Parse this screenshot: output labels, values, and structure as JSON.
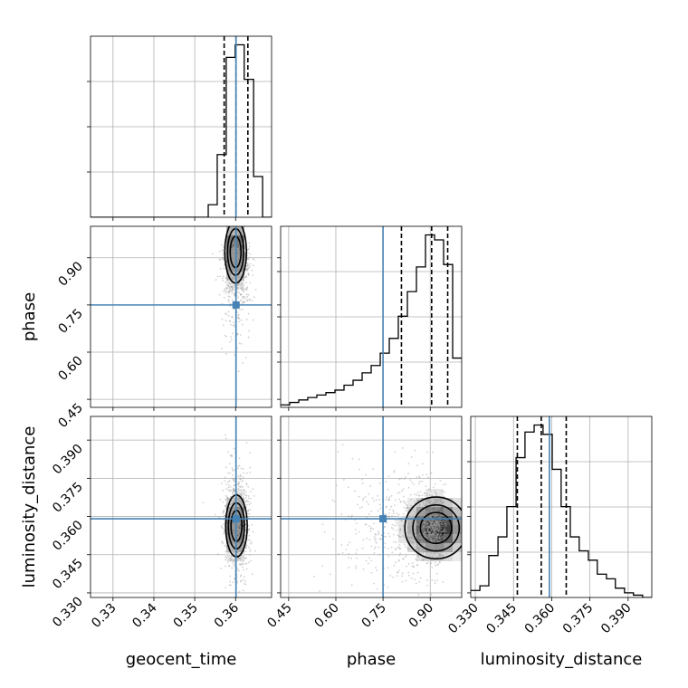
{
  "chart_data": {
    "type": "corner",
    "parameters": [
      "geocent_time",
      "phase",
      "luminosity_distance"
    ],
    "truths": {
      "geocent_time": 0.3601,
      "phase": 0.75,
      "luminosity_distance": 0.3591
    },
    "colors": {
      "truth": "#4682b4",
      "hist": "#000000",
      "samples": "#9a9a9a",
      "grid": "#b0b0b0"
    },
    "grid": true,
    "ranges": {
      "geocent_time": [
        0.3245,
        0.3688
      ],
      "phase": [
        0.4245,
        1.0
      ],
      "luminosity_distance": [
        0.3282,
        0.3993
      ]
    },
    "ticks": {
      "geocent_time": [
        "0.33",
        "0.34",
        "0.35",
        "0.36"
      ],
      "phase": [
        "0.45",
        "0.60",
        "0.75",
        "0.90"
      ],
      "luminosity_distance": [
        "0.330",
        "0.345",
        "0.360",
        "0.375",
        "0.390"
      ]
    },
    "quantiles": {
      "geocent_time": [
        0.3572,
        0.3601,
        0.363
      ],
      "phase": [
        0.8085,
        0.9045,
        0.9555
      ],
      "luminosity_distance": [
        0.3465,
        0.3559,
        0.3657
      ]
    },
    "histograms": {
      "geocent_time": {
        "edges": [
          0.3245,
          0.3267,
          0.3289,
          0.3311,
          0.3334,
          0.3356,
          0.3378,
          0.34,
          0.3422,
          0.3444,
          0.3466,
          0.3489,
          0.3511,
          0.3533,
          0.3555,
          0.3577,
          0.3599,
          0.3621,
          0.3644,
          0.3666,
          0.3688
        ],
        "counts": [
          0,
          0,
          0,
          0,
          0,
          0,
          0,
          0,
          0,
          0,
          0,
          0,
          0,
          4,
          20,
          51,
          55,
          44,
          13,
          0
        ]
      },
      "phase": {
        "edges": [
          0.4245,
          0.4533,
          0.4821,
          0.5108,
          0.5396,
          0.5684,
          0.5972,
          0.626,
          0.6547,
          0.6835,
          0.7123,
          0.7411,
          0.7699,
          0.7986,
          0.8274,
          0.8562,
          0.885,
          0.9138,
          0.9425,
          0.9713,
          1.0
        ],
        "counts": [
          1,
          2,
          3,
          4,
          5,
          6,
          7,
          9,
          11,
          14,
          17,
          22,
          28,
          37,
          47,
          57,
          70,
          68,
          58,
          20
        ]
      },
      "luminosity_distance": {
        "edges": [
          0.3282,
          0.3318,
          0.3353,
          0.3389,
          0.3424,
          0.346,
          0.3495,
          0.3531,
          0.3566,
          0.3602,
          0.3637,
          0.3673,
          0.3708,
          0.3744,
          0.3779,
          0.3815,
          0.385,
          0.3886,
          0.3921,
          0.3957,
          0.3993
        ],
        "counts": [
          3,
          5,
          18,
          26,
          39,
          60,
          71,
          74,
          70,
          55,
          39,
          26,
          20,
          16,
          10,
          8,
          4,
          2,
          1,
          0
        ]
      }
    },
    "densities": {
      "phase_vs_geocent_time": {
        "center": [
          0.36,
          0.9185
        ],
        "sigma": [
          0.0012,
          0.045
        ],
        "tail": [
          0.0017,
          0.12
        ],
        "levels": [
          0.15,
          0.35,
          0.62
        ]
      },
      "luminosity_distance_vs_geocent_time": {
        "center": [
          0.3602,
          0.3563
        ],
        "sigma": [
          0.0012,
          0.0055
        ],
        "tail": [
          0.0017,
          0.012
        ],
        "levels": [
          0.15,
          0.35,
          0.62
        ]
      },
      "luminosity_distance_vs_phase": {
        "center": [
          0.9185,
          0.3555
        ],
        "sigma": [
          0.045,
          0.0055
        ],
        "tail": [
          0.14,
          0.012
        ],
        "levels": [
          0.15,
          0.35,
          0.62
        ]
      }
    }
  }
}
